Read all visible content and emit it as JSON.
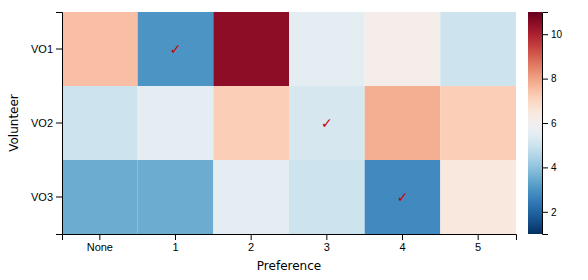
{
  "chart_data": {
    "type": "heatmap",
    "xlabel": "Preference",
    "ylabel": "Volunteer",
    "categories": [
      "None",
      "1",
      "2",
      "3",
      "4",
      "5"
    ],
    "row_labels": [
      "VO1",
      "VO2",
      "VO3"
    ],
    "values": [
      [
        7.5,
        3.0,
        10.5,
        5.5,
        6.2,
        5.0
      ],
      [
        5.0,
        5.5,
        7.2,
        5.2,
        7.8,
        7.2
      ],
      [
        3.5,
        3.5,
        5.5,
        5.0,
        2.8,
        6.5
      ]
    ],
    "color_range": [
      1,
      11
    ],
    "colorbar_ticks": [
      2,
      4,
      6,
      8,
      10
    ],
    "annotations": [
      {
        "text": "✓",
        "row": 0,
        "col": 1,
        "color": "#cc0000"
      },
      {
        "text": "✓",
        "row": 1,
        "col": 3,
        "color": "#cc0000"
      },
      {
        "text": "✓",
        "row": 2,
        "col": 4,
        "color": "#cc0000"
      }
    ]
  }
}
